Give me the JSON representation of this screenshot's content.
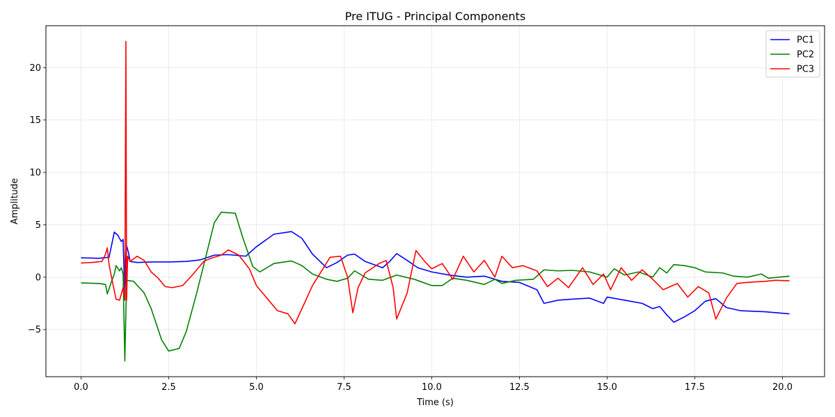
{
  "chart_data": {
    "type": "line",
    "title": "Pre ITUG - Principal Components",
    "xlabel": "Time (s)",
    "ylabel": "Amplitude",
    "xlim": [
      -1.0,
      21.2
    ],
    "ylim": [
      -9.5,
      24.0
    ],
    "xticks": [
      0.0,
      2.5,
      5.0,
      7.5,
      10.0,
      12.5,
      15.0,
      17.5,
      20.0
    ],
    "xtick_labels": [
      "0.0",
      "2.5",
      "5.0",
      "7.5",
      "10.0",
      "12.5",
      "15.0",
      "17.5",
      "20.0"
    ],
    "yticks": [
      -5,
      0,
      5,
      10,
      15,
      20
    ],
    "ytick_labels": [
      "−5",
      "0",
      "5",
      "10",
      "15",
      "20"
    ],
    "grid": true,
    "legend_position": "top-right",
    "series": [
      {
        "name": "PC1",
        "color": "#0000ff",
        "points": [
          [
            0.0,
            1.85
          ],
          [
            0.5,
            1.8
          ],
          [
            0.8,
            1.9
          ],
          [
            0.95,
            4.3
          ],
          [
            1.05,
            4.0
          ],
          [
            1.15,
            3.4
          ],
          [
            1.2,
            3.6
          ],
          [
            1.25,
            -2.0
          ],
          [
            1.3,
            3.0
          ],
          [
            1.35,
            2.4
          ],
          [
            1.4,
            1.5
          ],
          [
            1.6,
            1.4
          ],
          [
            2.0,
            1.45
          ],
          [
            2.5,
            1.45
          ],
          [
            3.0,
            1.5
          ],
          [
            3.4,
            1.65
          ],
          [
            3.8,
            2.1
          ],
          [
            4.2,
            2.15
          ],
          [
            4.7,
            2.0
          ],
          [
            5.0,
            2.9
          ],
          [
            5.5,
            4.1
          ],
          [
            6.0,
            4.35
          ],
          [
            6.3,
            3.7
          ],
          [
            6.6,
            2.2
          ],
          [
            7.0,
            0.9
          ],
          [
            7.3,
            1.4
          ],
          [
            7.6,
            2.1
          ],
          [
            7.8,
            2.2
          ],
          [
            8.1,
            1.5
          ],
          [
            8.6,
            0.9
          ],
          [
            8.8,
            1.5
          ],
          [
            9.0,
            2.25
          ],
          [
            9.3,
            1.6
          ],
          [
            9.6,
            0.9
          ],
          [
            10.0,
            0.5
          ],
          [
            10.5,
            0.2
          ],
          [
            11.0,
            0.0
          ],
          [
            11.5,
            0.1
          ],
          [
            12.0,
            -0.4
          ],
          [
            12.5,
            -0.5
          ],
          [
            13.0,
            -1.2
          ],
          [
            13.2,
            -2.5
          ],
          [
            13.6,
            -2.2
          ],
          [
            14.0,
            -2.1
          ],
          [
            14.5,
            -2.0
          ],
          [
            14.9,
            -2.5
          ],
          [
            15.0,
            -1.9
          ],
          [
            15.5,
            -2.2
          ],
          [
            16.0,
            -2.5
          ],
          [
            16.3,
            -3.0
          ],
          [
            16.5,
            -2.8
          ],
          [
            16.7,
            -3.6
          ],
          [
            16.9,
            -4.3
          ],
          [
            17.2,
            -3.8
          ],
          [
            17.5,
            -3.2
          ],
          [
            17.8,
            -2.3
          ],
          [
            18.1,
            -2.05
          ],
          [
            18.4,
            -2.9
          ],
          [
            18.8,
            -3.2
          ],
          [
            19.5,
            -3.3
          ],
          [
            20.2,
            -3.5
          ]
        ]
      },
      {
        "name": "PC2",
        "color": "#008000",
        "points": [
          [
            0.0,
            -0.55
          ],
          [
            0.5,
            -0.6
          ],
          [
            0.7,
            -0.7
          ],
          [
            0.75,
            -1.6
          ],
          [
            0.85,
            -0.6
          ],
          [
            0.95,
            0.3
          ],
          [
            1.0,
            1.1
          ],
          [
            1.1,
            0.6
          ],
          [
            1.15,
            0.9
          ],
          [
            1.2,
            0.3
          ],
          [
            1.25,
            -8.0
          ],
          [
            1.3,
            -0.3
          ],
          [
            1.5,
            -0.4
          ],
          [
            1.8,
            -1.5
          ],
          [
            2.0,
            -3.0
          ],
          [
            2.3,
            -6.0
          ],
          [
            2.5,
            -7.05
          ],
          [
            2.8,
            -6.8
          ],
          [
            3.0,
            -5.2
          ],
          [
            3.3,
            -1.5
          ],
          [
            3.6,
            2.5
          ],
          [
            3.8,
            5.2
          ],
          [
            4.0,
            6.2
          ],
          [
            4.4,
            6.1
          ],
          [
            4.6,
            3.9
          ],
          [
            4.9,
            1.0
          ],
          [
            5.1,
            0.5
          ],
          [
            5.5,
            1.3
          ],
          [
            6.0,
            1.55
          ],
          [
            6.3,
            1.1
          ],
          [
            6.6,
            0.3
          ],
          [
            7.0,
            -0.2
          ],
          [
            7.3,
            -0.4
          ],
          [
            7.6,
            -0.1
          ],
          [
            7.8,
            0.6
          ],
          [
            8.2,
            -0.2
          ],
          [
            8.6,
            -0.3
          ],
          [
            9.0,
            0.2
          ],
          [
            9.5,
            -0.2
          ],
          [
            10.0,
            -0.8
          ],
          [
            10.3,
            -0.8
          ],
          [
            10.6,
            -0.1
          ],
          [
            11.0,
            -0.3
          ],
          [
            11.5,
            -0.7
          ],
          [
            11.8,
            -0.2
          ],
          [
            12.0,
            -0.6
          ],
          [
            12.4,
            -0.3
          ],
          [
            12.9,
            -0.2
          ],
          [
            13.2,
            0.7
          ],
          [
            13.6,
            0.6
          ],
          [
            14.0,
            0.65
          ],
          [
            14.5,
            0.5
          ],
          [
            15.0,
            0.0
          ],
          [
            15.2,
            0.8
          ],
          [
            15.5,
            0.2
          ],
          [
            15.9,
            0.5
          ],
          [
            16.3,
            0.0
          ],
          [
            16.5,
            0.9
          ],
          [
            16.7,
            0.4
          ],
          [
            16.9,
            1.2
          ],
          [
            17.2,
            1.1
          ],
          [
            17.5,
            0.9
          ],
          [
            17.8,
            0.5
          ],
          [
            18.3,
            0.4
          ],
          [
            18.6,
            0.1
          ],
          [
            19.0,
            0.0
          ],
          [
            19.4,
            0.3
          ],
          [
            19.6,
            -0.1
          ],
          [
            20.2,
            0.1
          ]
        ]
      },
      {
        "name": "PC3",
        "color": "#ff0000",
        "points": [
          [
            0.0,
            1.35
          ],
          [
            0.3,
            1.4
          ],
          [
            0.6,
            1.5
          ],
          [
            0.7,
            2.2
          ],
          [
            0.75,
            2.8
          ],
          [
            0.8,
            1.2
          ],
          [
            0.9,
            -0.5
          ],
          [
            1.0,
            -2.1
          ],
          [
            1.1,
            -2.2
          ],
          [
            1.2,
            -1.0
          ],
          [
            1.25,
            -2.2
          ],
          [
            1.28,
            22.5
          ],
          [
            1.3,
            -2.2
          ],
          [
            1.33,
            2.0
          ],
          [
            1.4,
            1.5
          ],
          [
            1.6,
            2.0
          ],
          [
            1.8,
            1.6
          ],
          [
            2.0,
            0.5
          ],
          [
            2.2,
            -0.1
          ],
          [
            2.4,
            -0.9
          ],
          [
            2.6,
            -1.0
          ],
          [
            2.9,
            -0.8
          ],
          [
            3.2,
            0.3
          ],
          [
            3.5,
            1.5
          ],
          [
            3.7,
            1.8
          ],
          [
            4.0,
            2.1
          ],
          [
            4.2,
            2.6
          ],
          [
            4.5,
            2.1
          ],
          [
            4.8,
            0.8
          ],
          [
            5.0,
            -0.8
          ],
          [
            5.3,
            -2.0
          ],
          [
            5.6,
            -3.2
          ],
          [
            5.9,
            -3.5
          ],
          [
            6.1,
            -4.45
          ],
          [
            6.3,
            -3.0
          ],
          [
            6.6,
            -0.8
          ],
          [
            6.9,
            0.8
          ],
          [
            7.1,
            1.9
          ],
          [
            7.4,
            2.0
          ],
          [
            7.6,
            0.0
          ],
          [
            7.75,
            -3.4
          ],
          [
            7.9,
            -1.0
          ],
          [
            8.1,
            0.4
          ],
          [
            8.5,
            1.3
          ],
          [
            8.7,
            1.6
          ],
          [
            8.9,
            -1.0
          ],
          [
            9.0,
            -4.0
          ],
          [
            9.3,
            -1.5
          ],
          [
            9.55,
            2.55
          ],
          [
            9.8,
            1.5
          ],
          [
            10.0,
            0.8
          ],
          [
            10.3,
            1.3
          ],
          [
            10.6,
            -0.2
          ],
          [
            10.9,
            2.0
          ],
          [
            11.2,
            0.5
          ],
          [
            11.5,
            1.6
          ],
          [
            11.8,
            0.0
          ],
          [
            12.0,
            2.0
          ],
          [
            12.3,
            0.9
          ],
          [
            12.6,
            1.1
          ],
          [
            13.0,
            0.6
          ],
          [
            13.3,
            -0.9
          ],
          [
            13.6,
            -0.1
          ],
          [
            13.9,
            -1.0
          ],
          [
            14.3,
            0.9
          ],
          [
            14.6,
            -0.7
          ],
          [
            14.9,
            0.3
          ],
          [
            15.1,
            -1.2
          ],
          [
            15.4,
            0.9
          ],
          [
            15.7,
            -0.3
          ],
          [
            16.0,
            0.7
          ],
          [
            16.3,
            -0.2
          ],
          [
            16.6,
            -1.2
          ],
          [
            17.0,
            -0.6
          ],
          [
            17.3,
            -1.9
          ],
          [
            17.6,
            -0.9
          ],
          [
            17.9,
            -1.5
          ],
          [
            18.1,
            -4.0
          ],
          [
            18.4,
            -2.0
          ],
          [
            18.7,
            -0.6
          ],
          [
            19.0,
            -0.5
          ],
          [
            19.5,
            -0.4
          ],
          [
            19.8,
            -0.3
          ],
          [
            20.2,
            -0.35
          ]
        ]
      }
    ]
  }
}
